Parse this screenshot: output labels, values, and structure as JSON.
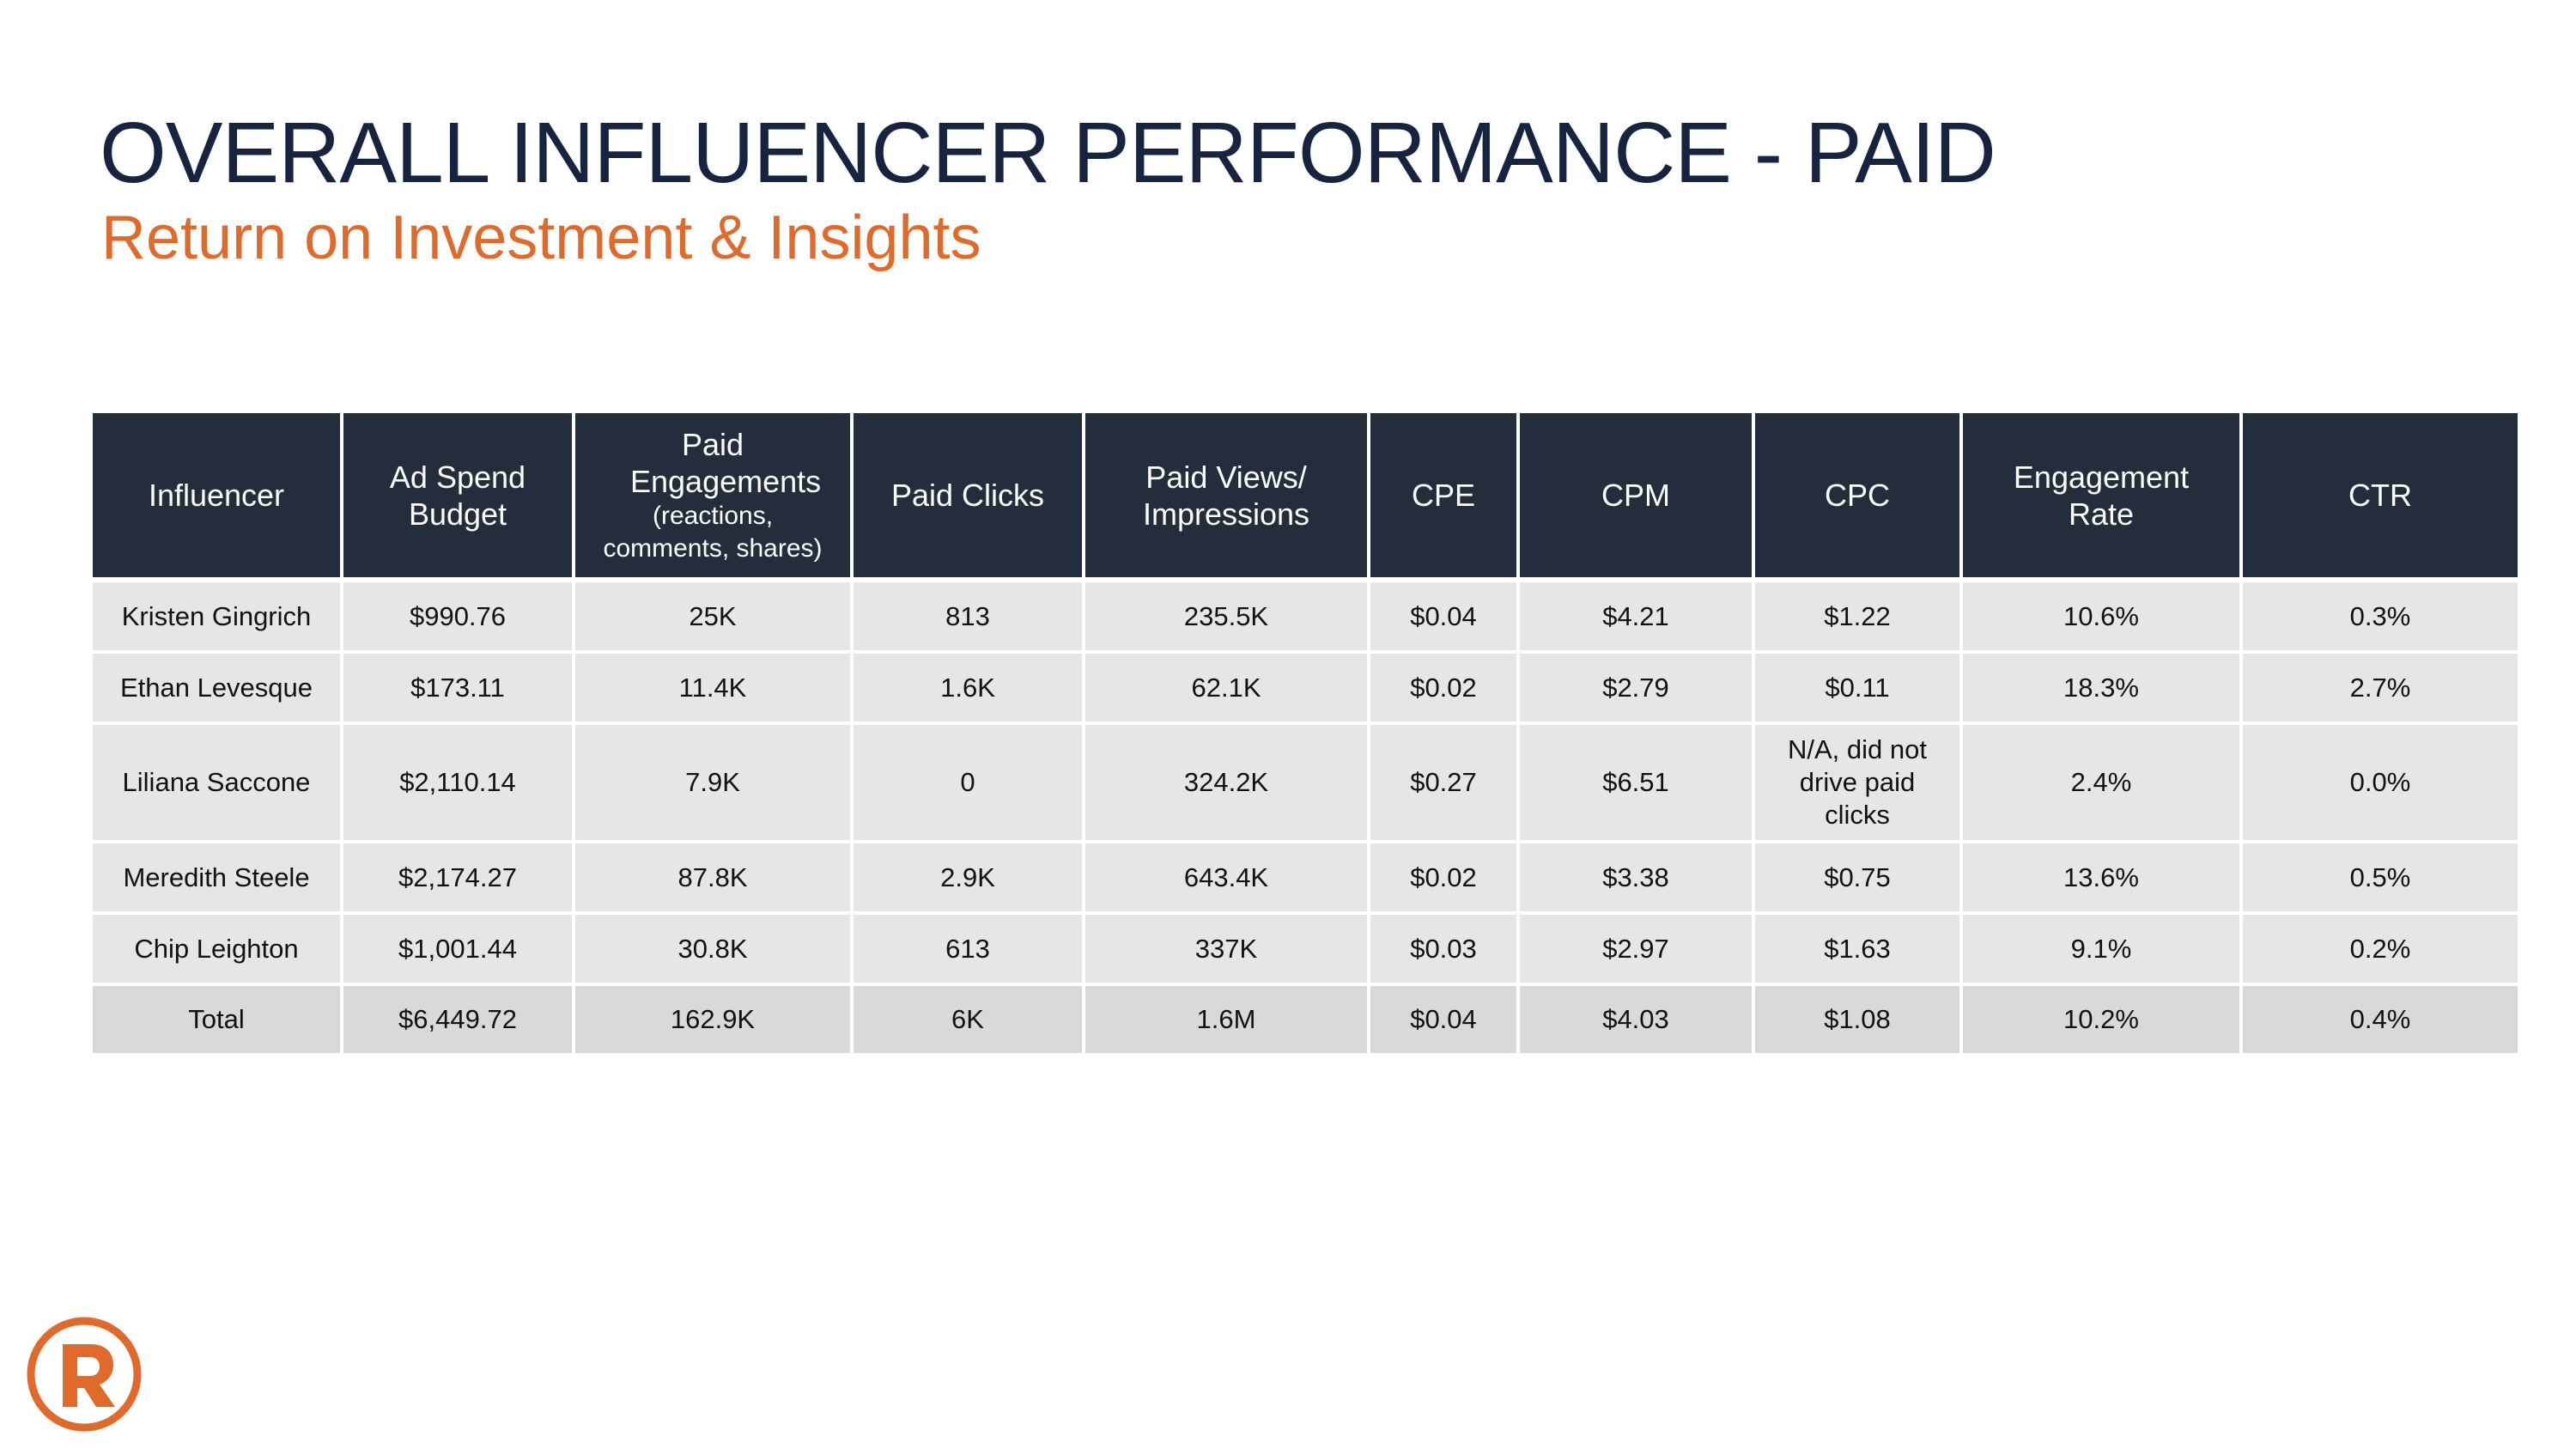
{
  "header": {
    "title": "OVERALL INFLUENCER PERFORMANCE - PAID",
    "subtitle": "Return on Investment & Insights"
  },
  "colors": {
    "title": "#172440",
    "accent": "#e06a2c",
    "table_header_bg": "#232d3b",
    "row_bg": "#e6e6e6",
    "total_row_bg": "#d9d9d9"
  },
  "table": {
    "columns": {
      "influencer": "Influencer",
      "ad_spend": "Ad Spend Budget",
      "paid_engagements": "Paid Engagements",
      "paid_engagements_note": "(reactions, comments, shares)",
      "paid_clicks": "Paid Clicks",
      "paid_views": "Paid Views/ Impressions",
      "cpe": "CPE",
      "cpm": "CPM",
      "cpc": "CPC",
      "engagement_rate": "Engagement Rate",
      "ctr": "CTR"
    },
    "rows": [
      [
        "Kristen Gingrich",
        "$990.76",
        "25K",
        "813",
        "235.5K",
        "$0.04",
        "$4.21",
        "$1.22",
        "10.6%",
        "0.3%"
      ],
      [
        "Ethan Levesque",
        "$173.11",
        "11.4K",
        "1.6K",
        "62.1K",
        "$0.02",
        "$2.79",
        "$0.11",
        "18.3%",
        "2.7%"
      ],
      [
        "Liliana Saccone",
        "$2,110.14",
        "7.9K",
        "0",
        "324.2K",
        "$0.27",
        "$6.51",
        "N/A, did not drive paid clicks",
        "2.4%",
        "0.0%"
      ],
      [
        "Meredith Steele",
        "$2,174.27",
        "87.8K",
        "2.9K",
        "643.4K",
        "$0.02",
        "$3.38",
        "$0.75",
        "13.6%",
        "0.5%"
      ],
      [
        "Chip Leighton",
        "$1,001.44",
        "30.8K",
        "613",
        "337K",
        "$0.03",
        "$2.97",
        "$1.63",
        "9.1%",
        "0.2%"
      ]
    ],
    "total": [
      "Total",
      "$6,449.72",
      "162.9K",
      "6K",
      "1.6M",
      "$0.04",
      "$4.03",
      "$1.08",
      "10.2%",
      "0.4%"
    ]
  },
  "logo": {
    "icon": "brand-logo-icon"
  }
}
